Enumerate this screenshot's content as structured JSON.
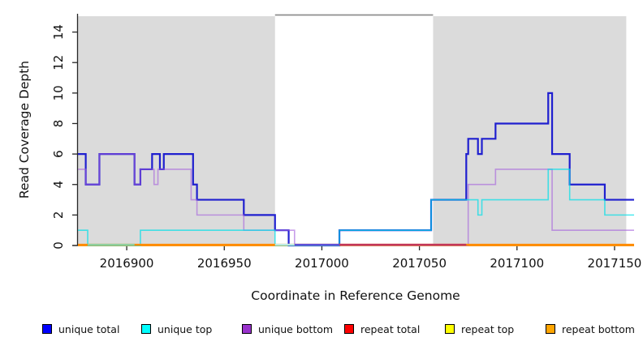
{
  "chart_data": {
    "type": "line",
    "subtype": "step-coverage-plot",
    "title": "",
    "xlabel": "Coordinate in Reference Genome",
    "ylabel": "Read Coverage Depth",
    "xlim": [
      2016875,
      2017160
    ],
    "ylim": [
      0,
      15.2
    ],
    "xticks": [
      2016900,
      2016950,
      2017000,
      2017050,
      2017100,
      2017150
    ],
    "yticks": [
      0,
      2,
      4,
      6,
      8,
      10,
      12,
      14
    ],
    "grid": false,
    "background": "#ffffff",
    "shaded_regions": [
      {
        "from": 2016875,
        "to": 2016976,
        "color": "#DBDBDB"
      },
      {
        "from": 2017057,
        "to": 2017156,
        "color": "#DBDBDB"
      }
    ],
    "gap_top_line": {
      "from": 2016976,
      "to": 2017057,
      "color": "#8E8E8E"
    },
    "series": [
      {
        "name": "unique total",
        "color": "#1515CF",
        "legend_color": "#0000FF",
        "points": [
          [
            2016875,
            6
          ],
          [
            2016879,
            4
          ],
          [
            2016886,
            6
          ],
          [
            2016904,
            4
          ],
          [
            2016907,
            5
          ],
          [
            2016913,
            6
          ],
          [
            2016917,
            5
          ],
          [
            2016919,
            6
          ],
          [
            2016934,
            4
          ],
          [
            2016936,
            3
          ],
          [
            2016960,
            2
          ],
          [
            2016976,
            1
          ],
          [
            2016983,
            0
          ],
          [
            2017009,
            1
          ],
          [
            2017056,
            3
          ],
          [
            2017074,
            6
          ],
          [
            2017075,
            7
          ],
          [
            2017080,
            6
          ],
          [
            2017082,
            7
          ],
          [
            2017089,
            8
          ],
          [
            2017116,
            10
          ],
          [
            2017118,
            6
          ],
          [
            2017127,
            4
          ],
          [
            2017145,
            3
          ],
          [
            2017160,
            3
          ]
        ]
      },
      {
        "name": "unique top",
        "color": "#00E0E8",
        "legend_color": "#00FFFF",
        "points": [
          [
            2016875,
            1
          ],
          [
            2016880,
            0
          ],
          [
            2016907,
            1
          ],
          [
            2016976,
            0
          ],
          [
            2017009,
            1
          ],
          [
            2017056,
            3
          ],
          [
            2017080,
            2
          ],
          [
            2017082,
            3
          ],
          [
            2017116,
            5
          ],
          [
            2017127,
            3
          ],
          [
            2017145,
            2
          ],
          [
            2017160,
            2
          ]
        ]
      },
      {
        "name": "unique bottom",
        "color": "#A45EDC",
        "legend_color": "#9932CC",
        "points": [
          [
            2016875,
            5
          ],
          [
            2016879,
            4
          ],
          [
            2016886,
            6
          ],
          [
            2016904,
            4
          ],
          [
            2016907,
            5
          ],
          [
            2016914,
            4
          ],
          [
            2016916,
            5
          ],
          [
            2016933,
            3
          ],
          [
            2016936,
            2
          ],
          [
            2016960,
            1
          ],
          [
            2016986,
            0
          ],
          [
            2017075,
            4
          ],
          [
            2017089,
            5
          ],
          [
            2017118,
            1
          ],
          [
            2017160,
            1
          ]
        ]
      },
      {
        "name": "repeat total",
        "color": "#C2365C",
        "legend_color": "#FF0000",
        "points": [
          [
            2016875,
            0
          ],
          [
            2017160,
            0
          ]
        ]
      },
      {
        "name": "repeat top",
        "color": "#F2E640",
        "legend_color": "#FFFF00",
        "points": [
          [
            2016875,
            0
          ],
          [
            2017160,
            0
          ]
        ]
      },
      {
        "name": "repeat bottom",
        "color": "#FF8C00",
        "legend_color": "#FFA500",
        "points": [
          [
            2016875,
            0
          ],
          [
            2017160,
            0
          ]
        ]
      }
    ],
    "baseline_overlay_segments": [
      {
        "from": 2016875,
        "to": 2017160,
        "color": "#FF8C00"
      },
      {
        "from": 2016880,
        "to": 2016904,
        "color": "#8FCF9F"
      },
      {
        "from": 2016976,
        "to": 2016986,
        "color": "#BDEBE3"
      },
      {
        "from": 2016986,
        "to": 2017009,
        "color": "#5F4FD8"
      },
      {
        "from": 2017009,
        "to": 2017074,
        "color": "#C2365C"
      }
    ],
    "legend": {
      "position": "bottom",
      "items": [
        "unique total",
        "unique top",
        "unique bottom",
        "repeat total",
        "repeat top",
        "repeat bottom"
      ]
    }
  }
}
